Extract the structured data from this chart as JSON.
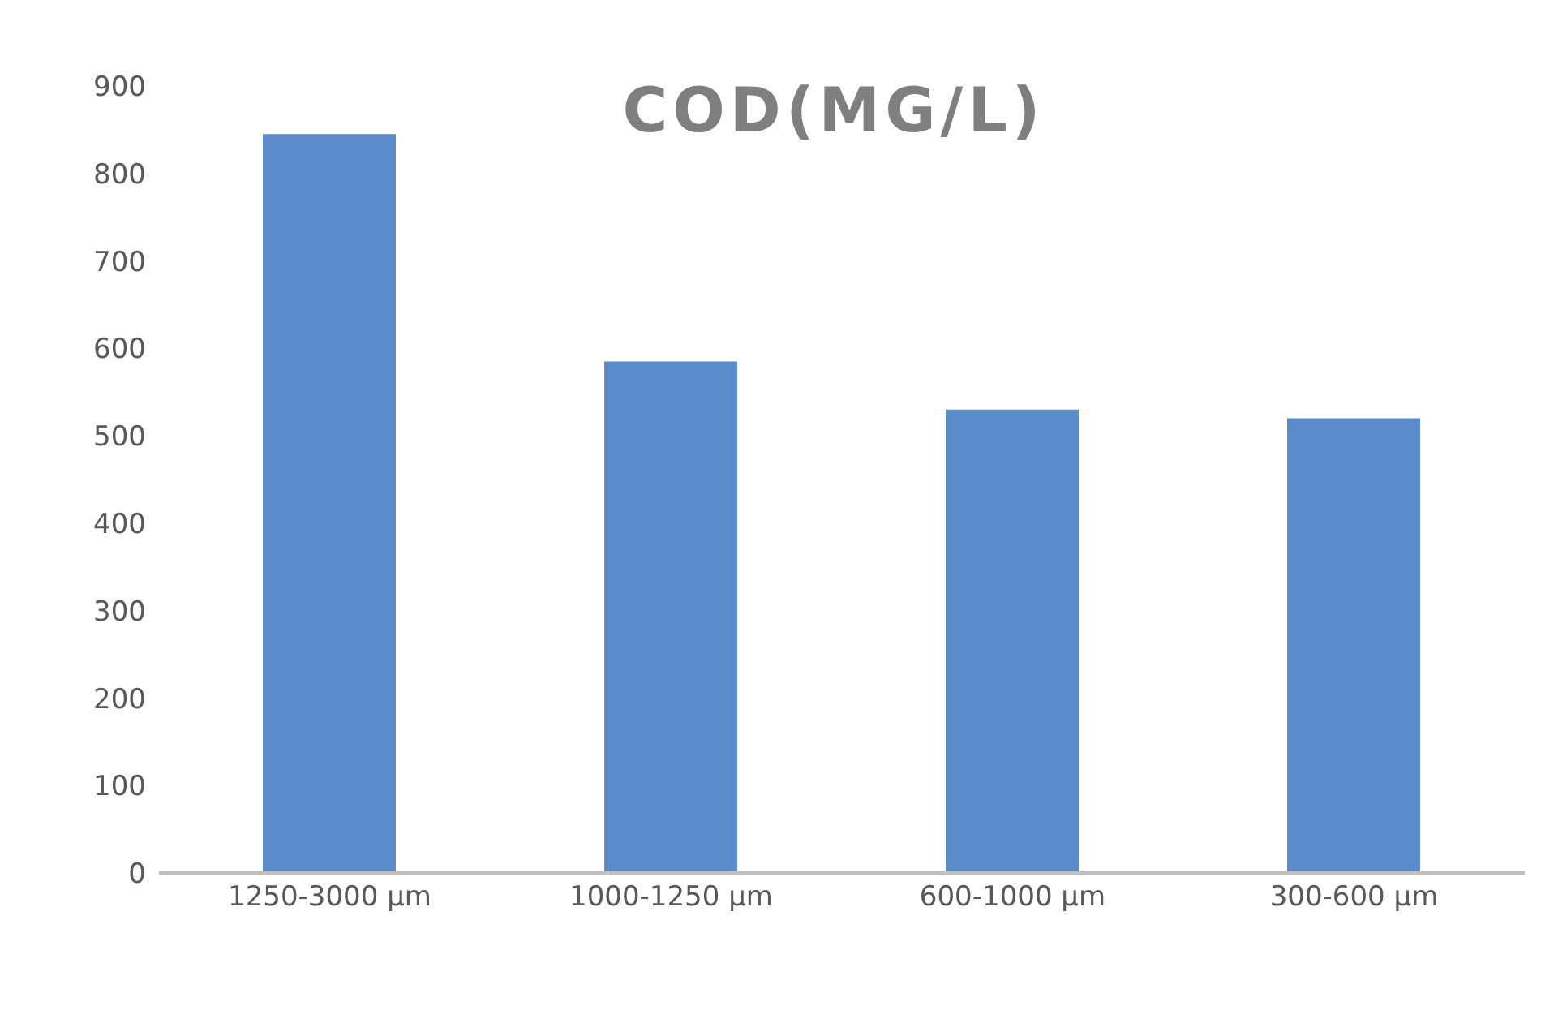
{
  "chart_data": {
    "type": "bar",
    "title": "COD(MG/L)",
    "categories": [
      "1250-3000 µm",
      "1000-1250 µm",
      "600-1000 µm",
      "300-600 µm"
    ],
    "values": [
      845,
      585,
      530,
      520
    ],
    "color": "#5b8bcb",
    "ylim": [
      0,
      900
    ],
    "yticks": [
      0,
      100,
      200,
      300,
      400,
      500,
      600,
      700,
      800,
      900
    ],
    "grid": false
  }
}
